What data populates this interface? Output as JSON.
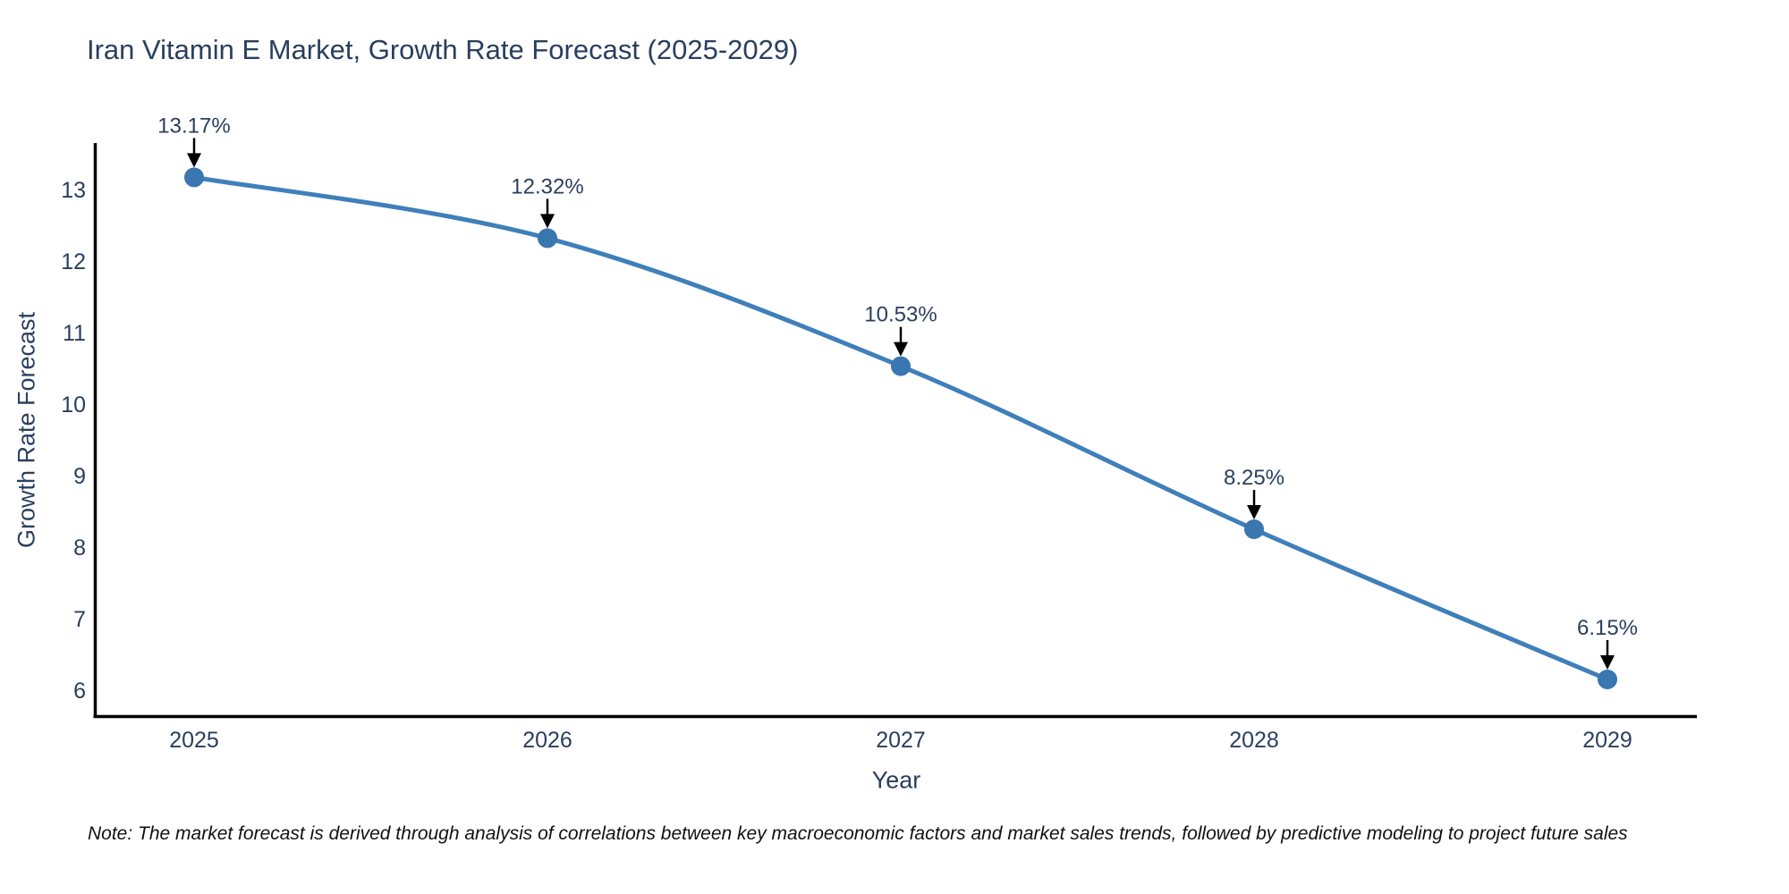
{
  "title": "Iran Vitamin E Market, Growth Rate Forecast (2025-2029)",
  "footnote": "Note: The market forecast is derived through analysis of correlations between key macroeconomic factors and market sales trends, followed by predictive modeling to project future sales",
  "chart_data": {
    "type": "line",
    "title": "Iran Vitamin E Market, Growth Rate Forecast (2025-2029)",
    "xlabel": "Year",
    "ylabel": "Growth Rate Forecast",
    "x": [
      2025,
      2026,
      2027,
      2028,
      2029
    ],
    "y": [
      13.17,
      12.32,
      10.53,
      8.25,
      6.15
    ],
    "point_labels": [
      "13.17%",
      "12.32%",
      "10.53%",
      "8.25%",
      "6.15%"
    ],
    "x_ticks": [
      "2025",
      "2026",
      "2027",
      "2028",
      "2029"
    ],
    "y_ticks": [
      6,
      7,
      8,
      9,
      10,
      11,
      12,
      13
    ],
    "ylim": [
      5.6,
      13.6
    ],
    "xlim": [
      2024.72,
      2029.25
    ],
    "grid": false,
    "legend": "none",
    "line_color": "#3f7fba",
    "marker_color": "#3a76b0",
    "arrow_color": "#000000",
    "axis_color": "#000000",
    "text_color": "#2a3f5f"
  }
}
